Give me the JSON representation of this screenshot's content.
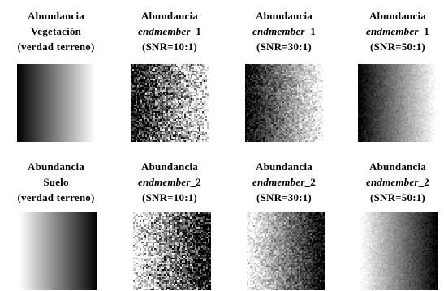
{
  "figure": {
    "rows": [
      {
        "panels": [
          {
            "line1": "Abundancia",
            "line2": "Vegetación",
            "line2_italic": "",
            "line2_suffix": "",
            "line3": "(verdad terreno)",
            "gradient": "dark-to-light",
            "noise": "none"
          },
          {
            "line1": "Abundancia",
            "line2": "",
            "line2_italic": "endmember",
            "line2_suffix": "_1",
            "line3": "(SNR=10:1)",
            "gradient": "dark-to-light",
            "noise": "high"
          },
          {
            "line1": "Abundancia",
            "line2": "",
            "line2_italic": "endmember",
            "line2_suffix": "_1",
            "line3": "(SNR=30:1)",
            "gradient": "dark-to-light",
            "noise": "medium"
          },
          {
            "line1": "Abundancia",
            "line2": "",
            "line2_italic": "endmember",
            "line2_suffix": "_1",
            "line3": "(SNR=50:1)",
            "gradient": "dark-to-light",
            "noise": "low"
          }
        ]
      },
      {
        "panels": [
          {
            "line1": "Abundancia",
            "line2": "Suelo",
            "line2_italic": "",
            "line2_suffix": "",
            "line3": "(verdad terreno)",
            "gradient": "light-to-dark",
            "noise": "none"
          },
          {
            "line1": "Abundancia",
            "line2": "",
            "line2_italic": "endmember",
            "line2_suffix": "_2",
            "line3": "(SNR=10:1)",
            "gradient": "light-to-dark",
            "noise": "high"
          },
          {
            "line1": "Abundancia",
            "line2": "",
            "line2_italic": "endmember",
            "line2_suffix": "_2",
            "line3": "(SNR=30:1)",
            "gradient": "light-to-dark",
            "noise": "medium"
          },
          {
            "line1": "Abundancia",
            "line2": "",
            "line2_italic": "endmember",
            "line2_suffix": "_2",
            "line3": "(SNR=50:1)",
            "gradient": "light-to-dark",
            "noise": "low"
          }
        ]
      }
    ]
  }
}
